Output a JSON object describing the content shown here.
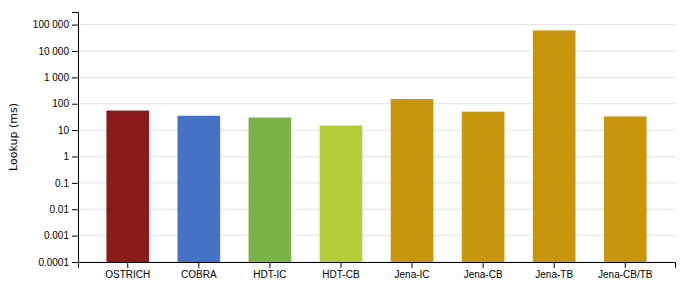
{
  "chart_data": {
    "type": "bar",
    "categories": [
      "OSTRICH",
      "COBRA",
      "HDT-IC",
      "HDT-CB",
      "Jena-IC",
      "Jena-CB",
      "Jena-TB",
      "Jena-CB/TB"
    ],
    "values": [
      55,
      35,
      30,
      15,
      150,
      50,
      60000,
      33
    ],
    "colors": [
      "#8B1A1A",
      "#4472C4",
      "#7CB347",
      "#B5CC3A",
      "#C8960C",
      "#C8960C",
      "#C8960C",
      "#C8960C"
    ],
    "y_label": "Lookup (ms)",
    "log": "y",
    "ylim": [
      0.0001,
      300000
    ],
    "yticks": [
      0.0001,
      0.001,
      0.01,
      0.1,
      1,
      10,
      100,
      {
        "value": 1000,
        "label": "1 000"
      },
      {
        "value": 10000,
        "label": "10 000"
      },
      {
        "value": 100000,
        "label": "100 000"
      }
    ],
    "grid": true
  }
}
